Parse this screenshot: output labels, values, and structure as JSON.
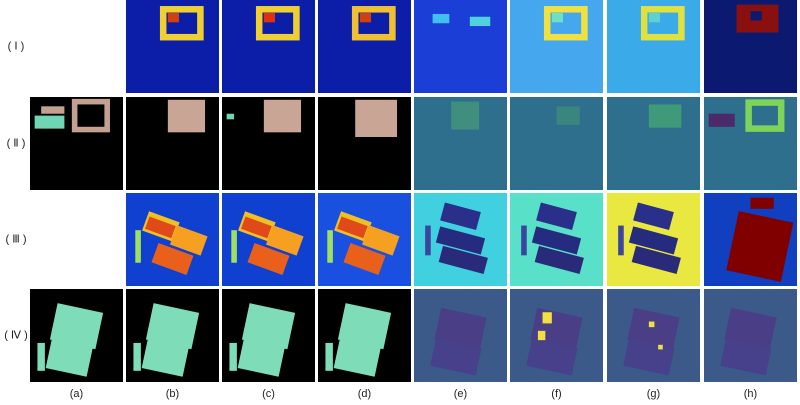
{
  "row_labels": [
    "( Ⅰ )",
    "( Ⅱ )",
    "( Ⅲ )",
    "( Ⅳ )"
  ],
  "column_labels": [
    "(a)",
    "(b)",
    "(c)",
    "(d)",
    "(e)",
    "(f)",
    "(g)",
    "(h)"
  ]
}
